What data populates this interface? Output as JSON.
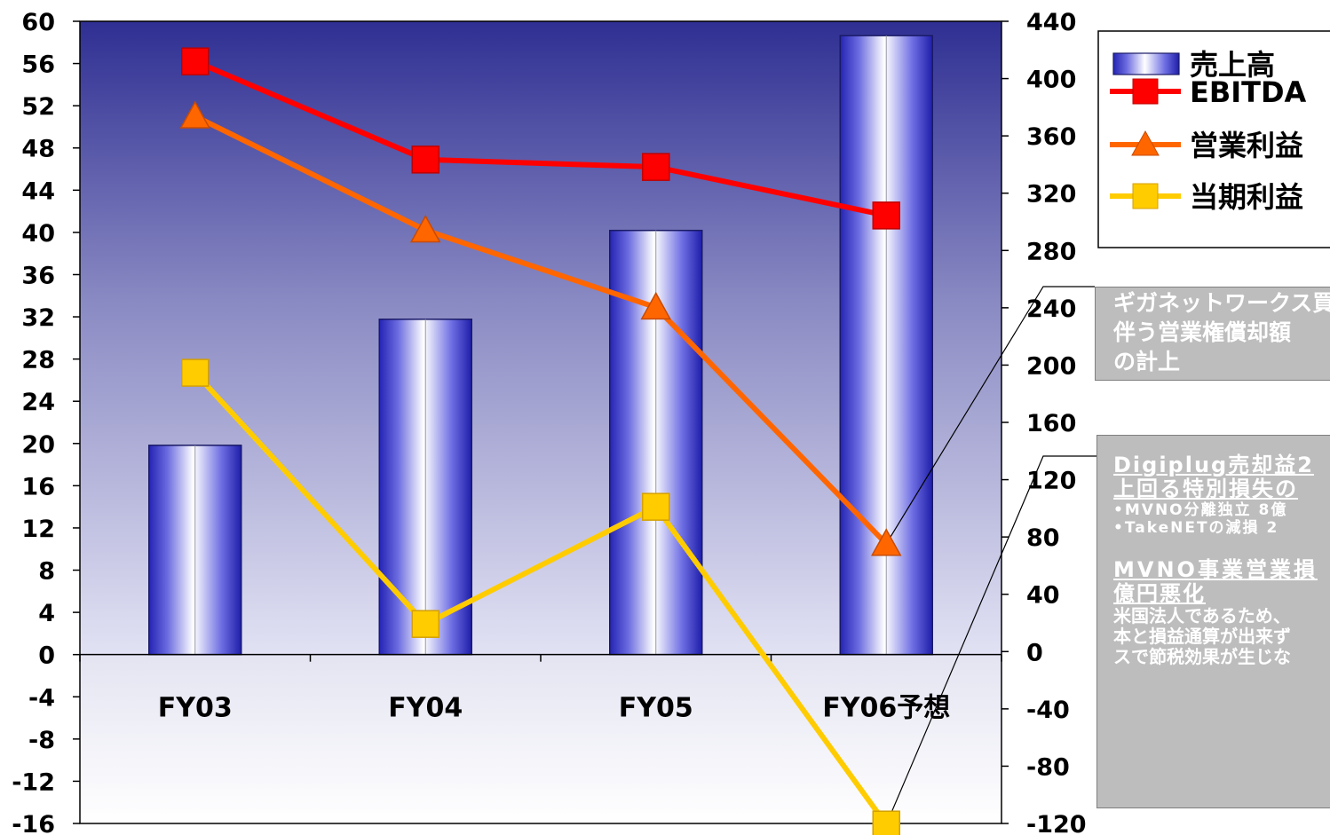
{
  "chart_data": {
    "type": "bar",
    "categories": [
      "FY03",
      "FY04",
      "FY05",
      "FY06予想"
    ],
    "series": [
      {
        "name": "売上高",
        "type": "bar",
        "axis": "right",
        "values": [
          144,
          232,
          294,
          430
        ]
      },
      {
        "name": "EBITDA",
        "type": "line",
        "axis": "left",
        "marker": "square",
        "values": [
          56.2,
          46.9,
          46.2,
          41.6
        ]
      },
      {
        "name": "営業利益",
        "type": "line",
        "axis": "left",
        "marker": "triangle",
        "values": [
          51.0,
          40.2,
          32.9,
          10.5
        ]
      },
      {
        "name": "当期利益",
        "type": "line",
        "axis": "left",
        "marker": "square",
        "values": [
          26.7,
          2.9,
          14.0,
          -16.1
        ]
      }
    ],
    "left_axis": {
      "ylim": [
        -16,
        60
      ],
      "ticks": [
        "60",
        "56",
        "52",
        "48",
        "44",
        "40",
        "36",
        "32",
        "28",
        "24",
        "20",
        "16",
        "12",
        "8",
        "4",
        "0",
        "-4",
        "-8",
        "-12",
        "-16"
      ]
    },
    "right_axis": {
      "ylim": [
        -120,
        440
      ],
      "ticks": [
        "440",
        "400",
        "360",
        "320",
        "280",
        "240",
        "200",
        "160",
        "120",
        "80",
        "40",
        "0",
        "-40",
        "-80",
        "-120"
      ]
    },
    "legend_position": "top-right",
    "colors": {
      "bar": "#3333cc",
      "ebitda": "#ff0000",
      "operating": "#ff6600",
      "net": "#ffcc00",
      "plot_top": "#333399",
      "note_bg": "#bdbdbd"
    }
  },
  "annotations": {
    "note1": {
      "lines": [
        "ギガネットワークス買収に",
        "伴う営業権償却額",
        "の計上"
      ]
    },
    "note2": {
      "heading": [
        "Digiplug売却益2",
        "上回る特別損失の"
      ],
      "bullets": [
        "•MVNO分離独立 8億",
        "•TakeNETの減損 2"
      ],
      "heading2": [
        "MVNO事業営業損",
        "億円悪化"
      ],
      "body": [
        "米国法人であるため、",
        "本と損益通算が出来ず",
        "スで節税効果が生じな"
      ]
    }
  }
}
